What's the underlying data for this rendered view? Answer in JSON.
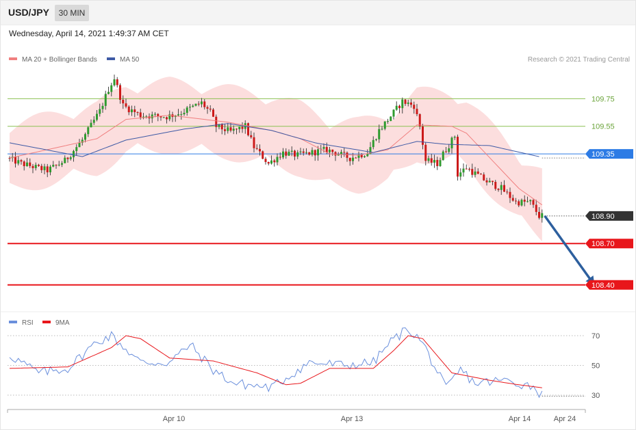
{
  "header": {
    "symbol": "USD/JPY",
    "timeframe": "30 MIN",
    "datetime": "Wednesday, April 14, 2021 1:49:37 AM CET"
  },
  "legend": {
    "ma20": "MA 20 + Bollinger Bands",
    "ma50": "MA 50",
    "copyright": "Research © 2021 Trading Central"
  },
  "rsi_legend": {
    "rsi": "RSI",
    "ma9": "9MA"
  },
  "colors": {
    "bull": "#2e9b2e",
    "bear": "#cc1a1a",
    "band": "#fcdada",
    "ma20": "#f07f7f",
    "ma50": "#3e5aa5",
    "resistance": "#8cc152",
    "pivot": "#2c7be5",
    "support": "#e8161b",
    "last": "#333333",
    "arrow": "#2d5f9e",
    "rsi": "#6a8fdc"
  },
  "chart_data": [
    {
      "type": "candlestick",
      "title": "USD/JPY 30 MIN",
      "x_tick_labels": [
        "Apr 10",
        "Apr 13",
        "Apr 14",
        "Apr 24"
      ],
      "ylim": [
        108.26,
        109.97
      ],
      "series": [
        {
          "name": "MA 20 + Bollinger Bands",
          "approx": [
            [
              0,
              109.32
            ],
            [
              30,
              109.46
            ],
            [
              40,
              109.6
            ],
            [
              55,
              109.63
            ],
            [
              75,
              109.58
            ],
            [
              90,
              109.52
            ],
            [
              100,
              109.46
            ],
            [
              110,
              109.35
            ],
            [
              120,
              109.34
            ],
            [
              130,
              109.38
            ],
            [
              140,
              109.56
            ],
            [
              152,
              109.55
            ],
            [
              157,
              109.5
            ],
            [
              175,
              109.1
            ],
            [
              183,
              108.98
            ]
          ]
        },
        {
          "name": "MA 50",
          "approx": [
            [
              0,
              109.43
            ],
            [
              25,
              109.33
            ],
            [
              40,
              109.45
            ],
            [
              60,
              109.53
            ],
            [
              75,
              109.57
            ],
            [
              90,
              109.52
            ],
            [
              105,
              109.43
            ],
            [
              125,
              109.36
            ],
            [
              140,
              109.44
            ],
            [
              150,
              109.42
            ],
            [
              165,
              109.41
            ],
            [
              182,
              109.33
            ]
          ]
        }
      ],
      "levels": [
        {
          "label": "109.75",
          "value": 109.75,
          "kind": "resistance"
        },
        {
          "label": "109.55",
          "value": 109.55,
          "kind": "resistance"
        },
        {
          "label": "109.35",
          "value": 109.35,
          "kind": "pivot"
        },
        {
          "label": "108.90",
          "value": 108.9,
          "kind": "last"
        },
        {
          "label": "108.70",
          "value": 108.7,
          "kind": "support"
        },
        {
          "label": "108.40",
          "value": 108.4,
          "kind": "support"
        }
      ],
      "projection": {
        "from": [
          183,
          108.9
        ],
        "to": [
          201,
          108.4
        ]
      }
    },
    {
      "type": "line",
      "title": "RSI",
      "ylim": [
        24.5,
        76
      ],
      "y_ticks": [
        30,
        50,
        70
      ],
      "series": [
        {
          "name": "RSI",
          "approx": [
            [
              0,
              57
            ],
            [
              10,
              45
            ],
            [
              20,
              48
            ],
            [
              30,
              66
            ],
            [
              35,
              70
            ],
            [
              45,
              52
            ],
            [
              55,
              52
            ],
            [
              62,
              64
            ],
            [
              70,
              47
            ],
            [
              77,
              38
            ],
            [
              90,
              35
            ],
            [
              103,
              52
            ],
            [
              115,
              50
            ],
            [
              125,
              52
            ],
            [
              131,
              66
            ],
            [
              137,
              75
            ],
            [
              142,
              65
            ],
            [
              150,
              34
            ],
            [
              155,
              47
            ],
            [
              160,
              38
            ],
            [
              170,
              40
            ],
            [
              180,
              36
            ],
            [
              183,
              30
            ]
          ]
        },
        {
          "name": "9MA",
          "approx": [
            [
              0,
              48
            ],
            [
              20,
              49
            ],
            [
              35,
              62
            ],
            [
              40,
              70
            ],
            [
              45,
              68
            ],
            [
              55,
              55
            ],
            [
              70,
              53
            ],
            [
              85,
              45
            ],
            [
              95,
              37
            ],
            [
              100,
              38
            ],
            [
              110,
              48
            ],
            [
              125,
              48
            ],
            [
              132,
              60
            ],
            [
              137,
              70
            ],
            [
              142,
              68
            ],
            [
              152,
              45
            ],
            [
              165,
              40
            ],
            [
              175,
              37
            ],
            [
              183,
              35
            ]
          ]
        }
      ]
    }
  ]
}
